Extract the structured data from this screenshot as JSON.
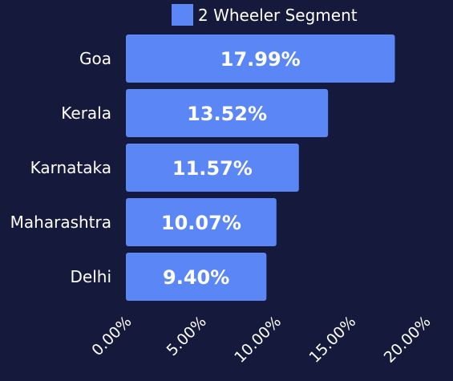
{
  "colors": {
    "background": "#151a3c",
    "bar": "#5b86f5",
    "text": "#ffffff"
  },
  "chart_data": {
    "type": "bar",
    "orientation": "horizontal",
    "categories": [
      "Goa",
      "Kerala",
      "Karnataka",
      "Maharashtra",
      "Delhi"
    ],
    "series": [
      {
        "name": "2 Wheeler Segment",
        "values": [
          17.99,
          13.52,
          11.57,
          10.07,
          9.4
        ],
        "labels": [
          "17.99%",
          "13.52%",
          "11.57%",
          "10.07%",
          "9.40%"
        ]
      }
    ],
    "xlim": [
      0,
      20
    ],
    "x_ticks": [
      0,
      5,
      10,
      15,
      20
    ],
    "x_tick_labels": [
      "0.00%",
      "5.00%",
      "10.00%",
      "15.00%",
      "20.00%"
    ],
    "grid": false,
    "legend_position": "top"
  }
}
